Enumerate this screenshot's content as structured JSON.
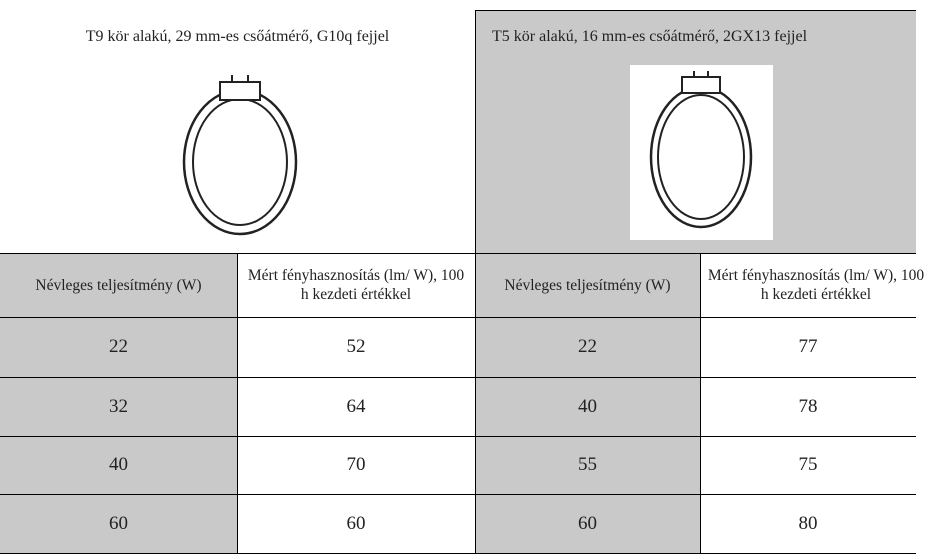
{
  "top": {
    "left_caption": "T9 kör alakú, 29 mm-es csőátmérő, G10q fejjel",
    "right_caption": "T5 kör alakú, 16 mm-es csőátmérő, 2GX13 fejjel"
  },
  "table": {
    "headers": [
      "Névleges teljesítmény (W)",
      "Mért fényhasznosítás (lm/ W), 100 h kezdeti értékkel",
      "Névleges teljesítmény (W)",
      "Mért fényhasznosítás (lm/ W), 100 h kezdeti értékkel"
    ],
    "rows": [
      [
        22,
        52,
        22,
        77
      ],
      [
        32,
        64,
        40,
        78
      ],
      [
        40,
        70,
        55,
        75
      ],
      [
        60,
        60,
        60,
        80
      ]
    ]
  }
}
